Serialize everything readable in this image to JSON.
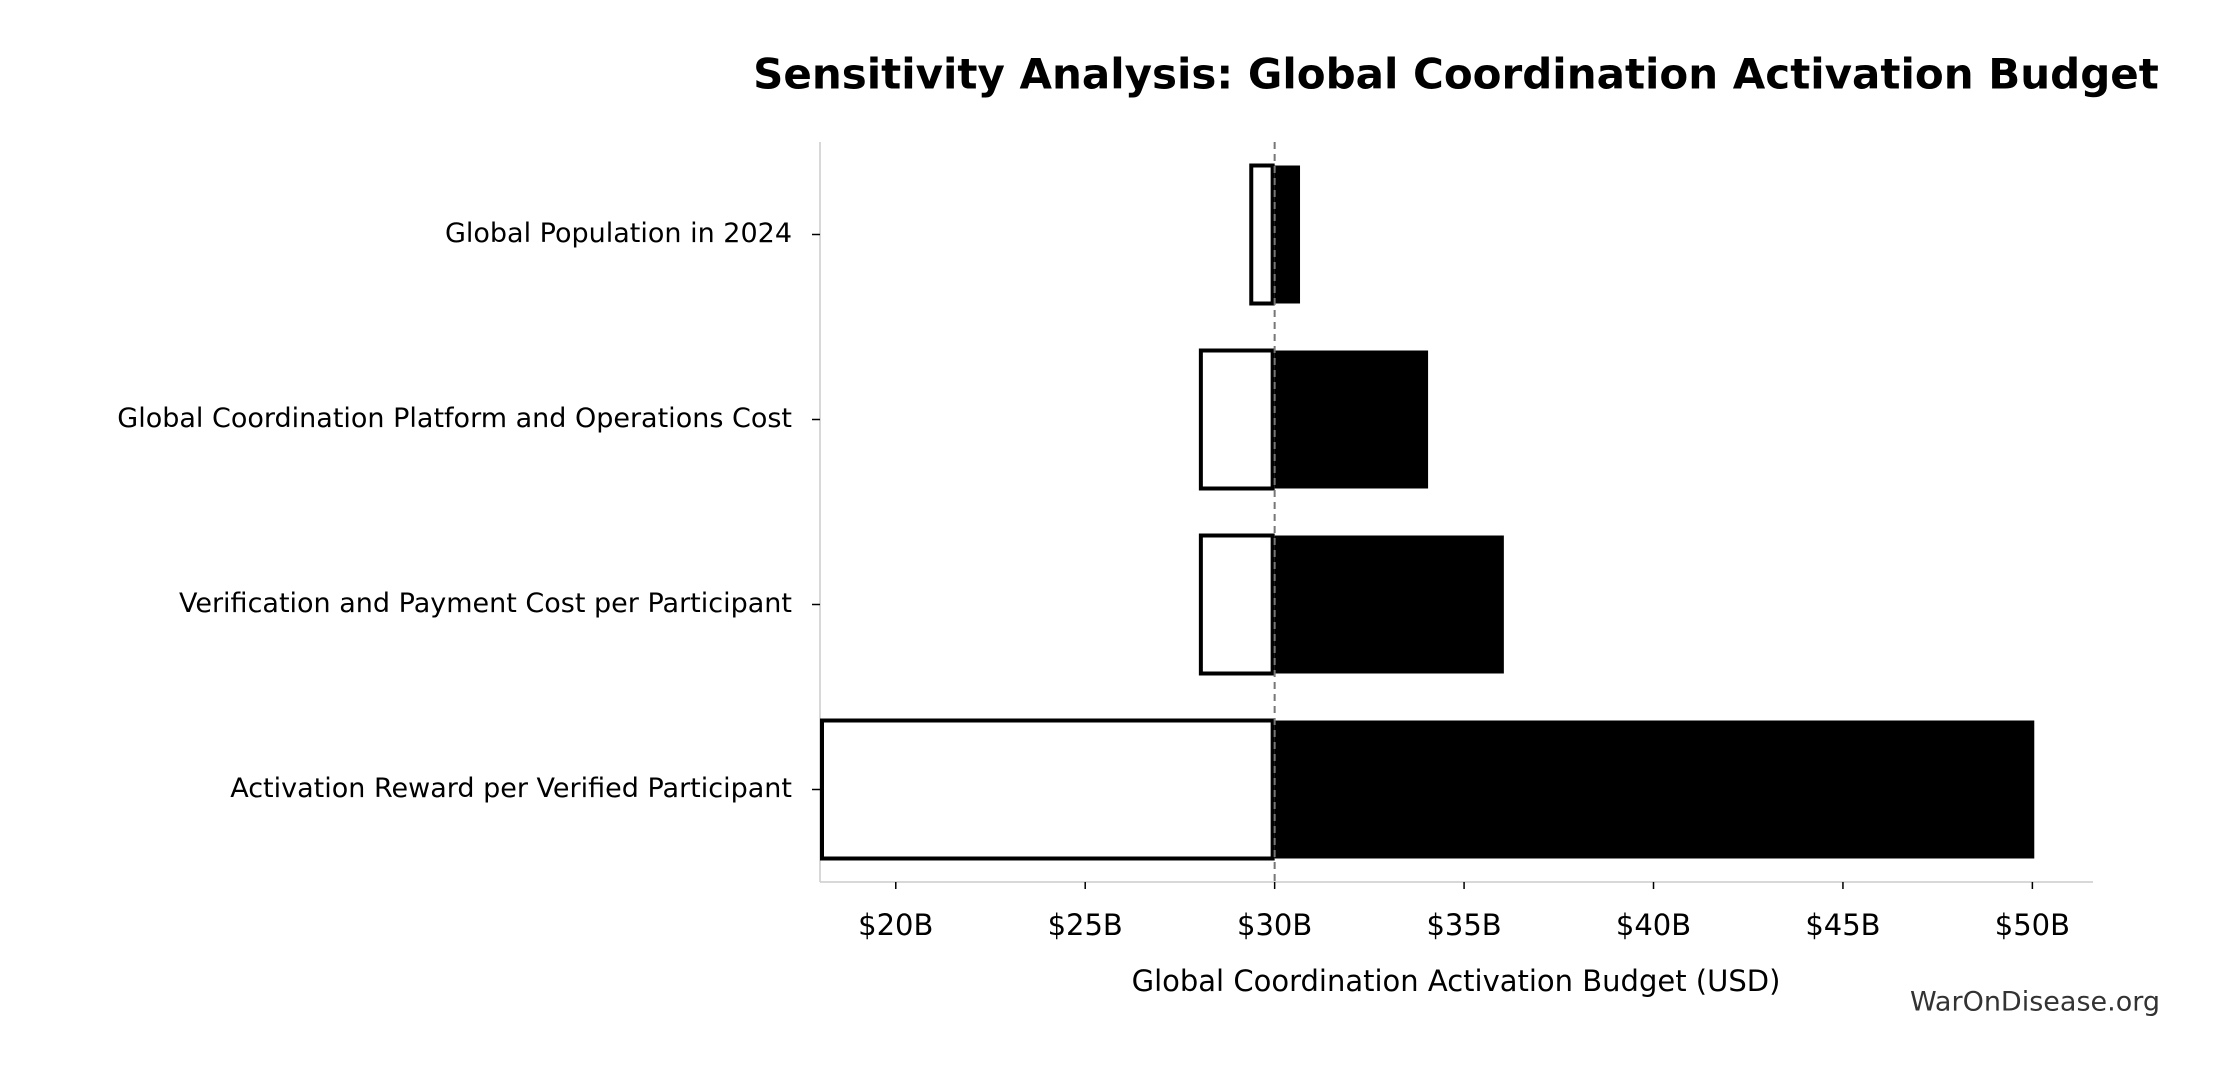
{
  "chart_data": {
    "type": "tornado",
    "title": "Sensitivity Analysis: Global Coordination Activation Budget",
    "xlabel": "Global Coordination Activation Budget (USD)",
    "watermark": "WarOnDisease.org",
    "categories": [
      "Global Population in 2024",
      "Global Coordination Platform and Operations Cost",
      "Verification and Payment Cost per Participant",
      "Activation Reward per Verified Participant"
    ],
    "baseline": 30,
    "series": [
      {
        "color": "#ffffff",
        "values": [
          29.33,
          28,
          28,
          18
        ]
      },
      {
        "color": "#000000",
        "values": [
          30.67,
          34.05,
          36.05,
          50.05
        ]
      }
    ],
    "xlim": [
      18,
      51.6
    ],
    "xticks": [
      {
        "value": 20,
        "label": "$20B"
      },
      {
        "value": 25,
        "label": "$25B"
      },
      {
        "value": 30,
        "label": "$30B"
      },
      {
        "value": 35,
        "label": "$35B"
      },
      {
        "value": 40,
        "label": "$40B"
      },
      {
        "value": 45,
        "label": "$45B"
      },
      {
        "value": 50,
        "label": "$50B"
      }
    ]
  }
}
